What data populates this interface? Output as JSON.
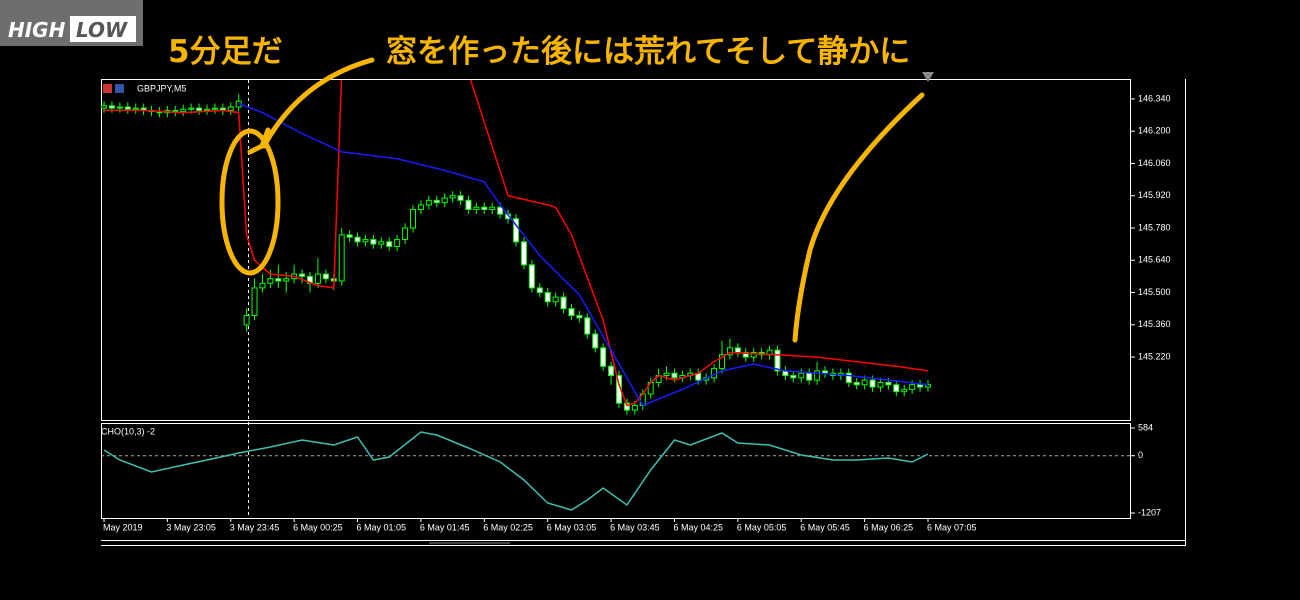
{
  "logo": {
    "left": "HIGH",
    "right": "LOW"
  },
  "annotations": [
    "5分足だ",
    "窓を作った後には荒れてそして静かに"
  ],
  "chart_data": [
    {
      "type": "candlestick",
      "title": "GBPJPY,M5",
      "categories": [
        "May 2019",
        null,
        null,
        null,
        null,
        null,
        null,
        null,
        "3 May 23:05",
        null,
        null,
        null,
        null,
        null,
        null,
        null,
        "3 May 23:45",
        null,
        null,
        null,
        null,
        null,
        null,
        null,
        "6 May 00:25",
        null,
        null,
        null,
        null,
        null,
        null,
        null,
        "6 May 01:05",
        null,
        null,
        null,
        null,
        null,
        null,
        null,
        "6 May 01:45",
        null,
        null,
        null,
        null,
        null,
        null,
        null,
        "6 May 02:25",
        null,
        null,
        null,
        null,
        null,
        null,
        null,
        "6 May 03:05",
        null,
        null,
        null,
        null,
        null,
        null,
        null,
        "6 May 03:45",
        null,
        null,
        null,
        null,
        null,
        null,
        null,
        "6 May 04:25",
        null,
        null,
        null,
        null,
        null,
        null,
        null,
        "6 May 05:05",
        null,
        null,
        null,
        null,
        null,
        null,
        null,
        "6 May 05:45",
        null,
        null,
        null,
        null,
        null,
        null,
        null,
        "6 May 06:25",
        null,
        null,
        null,
        null,
        null,
        null,
        null,
        "6 May 07:05"
      ],
      "open": [
        146.3,
        146.31,
        146.3,
        146.305,
        146.295,
        146.3,
        146.29,
        146.285,
        146.28,
        146.29,
        146.285,
        146.295,
        146.3,
        146.29,
        146.295,
        146.3,
        146.29,
        146.305,
        145.36,
        145.4,
        145.52,
        145.54,
        145.56,
        145.55,
        145.56,
        145.58,
        145.57,
        145.54,
        145.58,
        145.56,
        145.55,
        145.75,
        145.74,
        145.72,
        145.73,
        145.71,
        145.72,
        145.7,
        145.73,
        145.78,
        145.86,
        145.88,
        145.9,
        145.89,
        145.91,
        145.92,
        145.9,
        145.86,
        145.87,
        145.86,
        145.87,
        145.84,
        145.82,
        145.72,
        145.62,
        145.52,
        145.5,
        145.46,
        145.48,
        145.43,
        145.4,
        145.39,
        145.32,
        145.26,
        145.18,
        145.14,
        145.02,
        144.99,
        145.01,
        145.06,
        145.11,
        145.14,
        145.15,
        145.13,
        145.14,
        145.15,
        145.12,
        145.13,
        145.17,
        145.23,
        145.26,
        145.24,
        145.22,
        145.24,
        145.23,
        145.25,
        145.16,
        145.14,
        145.13,
        145.15,
        145.12,
        145.16,
        145.15,
        145.14,
        145.15,
        145.11,
        145.1,
        145.12,
        145.09,
        145.11,
        145.1,
        145.07,
        145.08,
        145.1,
        145.09
      ],
      "high": [
        146.33,
        146.33,
        146.325,
        146.325,
        146.32,
        146.32,
        146.31,
        146.305,
        146.31,
        146.31,
        146.315,
        146.32,
        146.32,
        146.315,
        146.32,
        146.32,
        146.325,
        146.36,
        145.43,
        145.56,
        145.58,
        145.6,
        145.62,
        145.59,
        145.62,
        145.6,
        145.59,
        145.65,
        145.6,
        145.58,
        145.78,
        145.77,
        145.76,
        145.75,
        145.75,
        145.74,
        145.74,
        145.75,
        145.8,
        145.88,
        145.9,
        145.92,
        145.92,
        145.93,
        145.94,
        145.94,
        145.92,
        145.89,
        145.89,
        145.89,
        145.89,
        145.86,
        145.84,
        145.74,
        145.64,
        145.54,
        145.52,
        145.5,
        145.5,
        145.45,
        145.42,
        145.41,
        145.34,
        145.28,
        145.2,
        145.16,
        145.04,
        145.03,
        145.08,
        145.13,
        145.17,
        145.18,
        145.17,
        145.16,
        145.17,
        145.17,
        145.15,
        145.19,
        145.29,
        145.3,
        145.28,
        145.26,
        145.26,
        145.26,
        145.27,
        145.27,
        145.18,
        145.16,
        145.17,
        145.17,
        145.2,
        145.18,
        145.17,
        145.17,
        145.17,
        145.13,
        145.14,
        145.14,
        145.13,
        145.13,
        145.12,
        145.1,
        145.12,
        145.12,
        145.12
      ],
      "low": [
        146.28,
        146.28,
        146.28,
        146.275,
        146.275,
        146.27,
        146.265,
        146.26,
        146.26,
        146.265,
        146.265,
        146.275,
        146.27,
        146.27,
        146.275,
        146.27,
        146.27,
        146.285,
        145.33,
        145.38,
        145.5,
        145.52,
        145.52,
        145.5,
        145.54,
        145.54,
        145.5,
        145.52,
        145.54,
        145.51,
        145.53,
        145.72,
        145.7,
        145.7,
        145.69,
        145.69,
        145.68,
        145.68,
        145.71,
        145.76,
        145.84,
        145.86,
        145.87,
        145.87,
        145.89,
        145.88,
        145.84,
        145.84,
        145.84,
        145.84,
        145.82,
        145.8,
        145.7,
        145.6,
        145.5,
        145.48,
        145.44,
        145.44,
        145.41,
        145.38,
        145.37,
        145.3,
        145.24,
        145.16,
        145.1,
        145.0,
        144.97,
        144.97,
        144.99,
        145.04,
        145.09,
        145.12,
        145.11,
        145.11,
        145.12,
        145.1,
        145.1,
        145.11,
        145.15,
        145.21,
        145.22,
        145.2,
        145.2,
        145.21,
        145.21,
        145.14,
        145.12,
        145.11,
        145.11,
        145.1,
        145.1,
        145.13,
        145.12,
        145.12,
        145.09,
        145.08,
        145.08,
        145.07,
        145.07,
        145.08,
        145.05,
        145.05,
        145.06,
        145.07,
        145.07
      ],
      "close": [
        146.31,
        146.3,
        146.305,
        146.295,
        146.3,
        146.29,
        146.285,
        146.28,
        146.29,
        146.285,
        146.295,
        146.3,
        146.29,
        146.295,
        146.3,
        146.29,
        146.305,
        146.33,
        145.4,
        145.52,
        145.54,
        145.56,
        145.55,
        145.56,
        145.58,
        145.57,
        145.54,
        145.58,
        145.56,
        145.55,
        145.75,
        145.74,
        145.72,
        145.73,
        145.71,
        145.72,
        145.7,
        145.73,
        145.78,
        145.86,
        145.88,
        145.9,
        145.89,
        145.91,
        145.92,
        145.9,
        145.86,
        145.87,
        145.86,
        145.87,
        145.84,
        145.82,
        145.72,
        145.62,
        145.52,
        145.5,
        145.46,
        145.48,
        145.43,
        145.4,
        145.39,
        145.32,
        145.26,
        145.18,
        145.14,
        145.02,
        144.99,
        145.01,
        145.06,
        145.11,
        145.14,
        145.15,
        145.13,
        145.14,
        145.15,
        145.12,
        145.13,
        145.17,
        145.23,
        145.26,
        145.24,
        145.22,
        145.24,
        145.23,
        145.25,
        145.16,
        145.14,
        145.13,
        145.15,
        145.12,
        145.16,
        145.15,
        145.14,
        145.15,
        145.11,
        145.1,
        145.12,
        145.09,
        145.11,
        145.1,
        145.07,
        145.08,
        145.1,
        145.09,
        145.1
      ],
      "up_color": "#00ff00",
      "down_color": "#ffffff",
      "lines": [
        {
          "color": "#ff0000",
          "x": [
            0,
            5,
            10,
            15,
            17,
            18,
            19,
            21,
            24,
            27,
            29,
            30,
            38,
            46,
            51,
            56,
            57,
            59,
            63,
            65,
            66,
            67,
            68,
            69,
            70,
            72,
            75,
            77,
            79,
            85,
            90,
            95,
            100,
            104
          ],
          "values": [
            146.29,
            146.29,
            146.28,
            146.29,
            146.28,
            145.75,
            145.64,
            145.58,
            145.57,
            145.53,
            145.52,
            146.45,
            null,
            146.45,
            145.92,
            145.88,
            145.87,
            145.75,
            145.38,
            145.1,
            145.01,
            145.02,
            145.06,
            145.11,
            145.14,
            145.12,
            145.15,
            145.2,
            145.24,
            145.23,
            145.22,
            145.2,
            145.18,
            145.16
          ]
        },
        {
          "color": "#1a1aff",
          "x": [
            17,
            20,
            25,
            30,
            37,
            43,
            48,
            50,
            55,
            60,
            64,
            68,
            73,
            78,
            82,
            86,
            94,
            104
          ],
          "values": [
            146.32,
            146.28,
            146.19,
            146.11,
            146.08,
            146.03,
            145.98,
            145.88,
            145.66,
            145.49,
            145.25,
            145.01,
            145.08,
            145.16,
            145.19,
            145.16,
            145.14,
            145.1
          ]
        }
      ],
      "ylim": [
        144.947,
        146.422
      ],
      "yticks": [
        {
          "value": 146.34,
          "label": "146.340"
        },
        {
          "value": 146.2,
          "label": "146.200"
        },
        {
          "value": 146.06,
          "label": "146.060"
        },
        {
          "value": 145.92,
          "label": "145.920"
        },
        {
          "value": 145.78,
          "label": "145.780"
        },
        {
          "value": 145.64,
          "label": "145.640"
        },
        {
          "value": 145.5,
          "label": "145.500"
        },
        {
          "value": 145.36,
          "label": "145.360"
        },
        {
          "value": 145.22,
          "label": "145.220"
        }
      ]
    },
    {
      "type": "line",
      "title": "CHO(10,3) -2",
      "color": "#3fbfb5",
      "x": [
        0,
        2,
        6,
        10,
        13,
        17,
        21,
        25,
        29,
        32,
        34,
        36,
        40,
        42,
        46,
        50,
        53,
        56,
        59,
        61,
        63,
        66,
        69,
        72,
        74,
        78,
        80,
        84,
        88,
        92,
        95,
        99,
        102,
        104
      ],
      "values": [
        120,
        -90,
        -343,
        -196,
        -90,
        57,
        183,
        331,
        225,
        394,
        -90,
        -27,
        499,
        436,
        162,
        -133,
        -512,
        -997,
        -1144,
        -933,
        -680,
        -1039,
        -301,
        331,
        225,
        478,
        267,
        225,
        15,
        -90,
        -90,
        -48,
        -133,
        36
      ],
      "ylim": [
        -1207,
        584
      ],
      "yticks": [
        584,
        0,
        -1207
      ]
    }
  ]
}
